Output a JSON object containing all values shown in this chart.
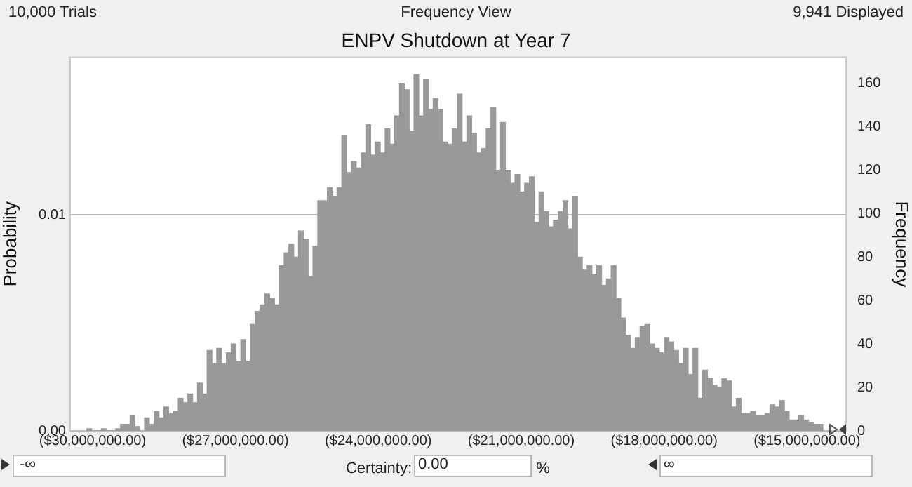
{
  "chart_data": {
    "type": "histogram",
    "title": "ENPV Shutdown at Year 7",
    "ylabel": "Probability",
    "y2label": "Frequency",
    "annotations": [
      "10,000 Trials",
      "Frequency View",
      "9,941 Displayed",
      "-∞",
      "Certainty:",
      "0.00",
      "%",
      "∞"
    ],
    "bins": [
      -30120000,
      -30019000,
      -29918000,
      -29817000,
      -29716000,
      -29615000,
      -29514000,
      -29413000,
      -29312000,
      -29211000,
      -29110000,
      -29009000,
      -28908000,
      -28807000,
      -28706000,
      -28605000,
      -28504000,
      -28403000,
      -28302000,
      -28201000,
      -28100000,
      -27999000,
      -27898000,
      -27797000,
      -27696000,
      -27595000,
      -27494000,
      -27393000,
      -27292000,
      -27191000,
      -27090000,
      -26989000,
      -26888000,
      -26787000,
      -26686000,
      -26585000,
      -26484000,
      -26383000,
      -26282000,
      -26181000,
      -26080000,
      -25979000,
      -25878000,
      -25777000,
      -25676000,
      -25575000,
      -25474000,
      -25373000,
      -25272000,
      -25171000,
      -25070000,
      -24969000,
      -24868000,
      -24767000,
      -24666000,
      -24565000,
      -24464000,
      -24363000,
      -24262000,
      -24161000,
      -24060000,
      -23959000,
      -23858000,
      -23757000,
      -23656000,
      -23555000,
      -23454000,
      -23353000,
      -23252000,
      -23151000,
      -23050000,
      -22949000,
      -22848000,
      -22747000,
      -22646000,
      -22545000,
      -22444000,
      -22343000,
      -22242000,
      -22141000,
      -22040000,
      -21939000,
      -21838000,
      -21737000,
      -21636000,
      -21535000,
      -21434000,
      -21333000,
      -21232000,
      -21131000,
      -21030000,
      -20929000,
      -20828000,
      -20727000,
      -20626000,
      -20525000,
      -20424000,
      -20323000,
      -20222000,
      -20121000,
      -20020000,
      -19919000,
      -19818000,
      -19717000,
      -19616000,
      -19515000,
      -19414000,
      -19313000,
      -19212000,
      -19111000,
      -19010000,
      -18909000,
      -18808000,
      -18707000,
      -18606000,
      -18505000,
      -18404000,
      -18303000,
      -18202000,
      -18101000,
      -18000000,
      -17899000,
      -17798000,
      -17697000,
      -17596000,
      -17495000,
      -17394000,
      -17293000,
      -17192000,
      -17091000,
      -16990000,
      -16889000,
      -16788000,
      -16687000,
      -16586000,
      -16485000,
      -16384000,
      -16283000,
      -16182000,
      -16081000,
      -15980000,
      -15879000,
      -15778000,
      -15677000,
      -15576000,
      -15475000,
      -15374000,
      -15273000,
      -15172000,
      -15071000,
      -14970000,
      -14869000,
      -14768000,
      -14667000
    ],
    "series": [
      {
        "color": "#999999",
        "axis": "y2",
        "values": [
          1,
          0,
          0,
          1,
          0,
          0,
          1,
          3,
          3,
          7,
          2,
          0,
          6,
          3,
          9,
          6,
          11,
          8,
          9,
          15,
          13,
          17,
          13,
          22,
          17,
          37,
          31,
          38,
          31,
          36,
          40,
          32,
          42,
          32,
          49,
          55,
          58,
          63,
          61,
          58,
          76,
          82,
          86,
          80,
          92,
          88,
          71,
          85,
          106,
          106,
          112,
          108,
          112,
          136,
          119,
          124,
          121,
          128,
          141,
          127,
          133,
          128,
          139,
          132,
          145,
          160,
          157,
          138,
          164,
          145,
          162,
          148,
          153,
          148,
          133,
          132,
          139,
          155,
          133,
          145,
          137,
          128,
          130,
          139,
          149,
          120,
          142,
          120,
          114,
          118,
          110,
          114,
          117,
          96,
          110,
          101,
          94,
          97,
          101,
          106,
          93,
          108,
          80,
          74,
          76,
          72,
          76,
          67,
          70,
          76,
          61,
          52,
          44,
          38,
          43,
          48,
          49,
          40,
          38,
          36,
          43,
          41,
          37,
          31,
          38,
          26,
          38,
          15,
          28,
          24,
          21,
          20,
          24,
          23,
          11,
          15,
          8,
          8,
          9,
          7,
          7,
          8,
          12,
          11,
          14,
          9,
          5,
          5,
          7,
          5,
          4,
          3,
          3
        ]
      }
    ],
    "xlim": [
      -30470000,
      -14180000
    ],
    "xticks": [
      {
        "value": -30000000,
        "label": "($30,000,000.00)"
      },
      {
        "value": -27000000,
        "label": "($27,000,000.00)"
      },
      {
        "value": -24000000,
        "label": "($24,000,000.00)"
      },
      {
        "value": -21000000,
        "label": "($21,000,000.00)"
      },
      {
        "value": -18000000,
        "label": "($18,000,000.00)"
      },
      {
        "value": -15000000,
        "label": "($15,000,000.00)"
      }
    ],
    "ylim": [
      0,
      0.0173
    ],
    "yticks": [
      {
        "value": 0,
        "label": "0.00"
      },
      {
        "value": 0.01,
        "label": "0.01"
      }
    ],
    "y2lim": [
      0,
      172
    ],
    "y2ticks": [
      0,
      20,
      40,
      60,
      80,
      100,
      120,
      140,
      160
    ],
    "grid": "y",
    "legend": false
  }
}
